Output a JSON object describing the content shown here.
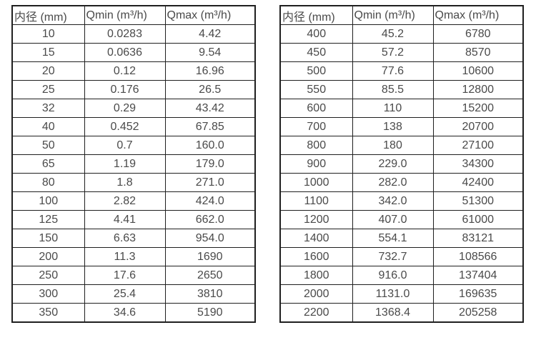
{
  "page": {
    "background_color": "#ffffff",
    "border_color": "#1f1f1f",
    "text_color": "#4a4a4a"
  },
  "tables": [
    {
      "id": "flow-range-table-left",
      "headers": [
        "内径 (mm)",
        "Qmin (m³/h)",
        "Qmax (m³/h)"
      ],
      "rows": [
        [
          "10",
          "0.0283",
          "4.42"
        ],
        [
          "15",
          "0.0636",
          "9.54"
        ],
        [
          "20",
          "0.12",
          "16.96"
        ],
        [
          "25",
          "0.176",
          "26.5"
        ],
        [
          "32",
          "0.29",
          "43.42"
        ],
        [
          "40",
          "0.452",
          "67.85"
        ],
        [
          "50",
          "0.7",
          "160.0"
        ],
        [
          "65",
          "1.19",
          "179.0"
        ],
        [
          "80",
          "1.8",
          "271.0"
        ],
        [
          "100",
          "2.82",
          "424.0"
        ],
        [
          "125",
          "4.41",
          "662.0"
        ],
        [
          "150",
          "6.63",
          "954.0"
        ],
        [
          "200",
          "11.3",
          "1690"
        ],
        [
          "250",
          "17.6",
          "2650"
        ],
        [
          "300",
          "25.4",
          "3810"
        ],
        [
          "350",
          "34.6",
          "5190"
        ]
      ]
    },
    {
      "id": "flow-range-table-right",
      "headers": [
        "内径 (mm)",
        "Qmin (m³/h)",
        "Qmax (m³/h)"
      ],
      "rows": [
        [
          "400",
          "45.2",
          "6780"
        ],
        [
          "450",
          "57.2",
          "8570"
        ],
        [
          "500",
          "77.6",
          "10600"
        ],
        [
          "550",
          "85.5",
          "12800"
        ],
        [
          "600",
          "110",
          "15200"
        ],
        [
          "700",
          "138",
          "20700"
        ],
        [
          "800",
          "180",
          "27100"
        ],
        [
          "900",
          "229.0",
          "34300"
        ],
        [
          "1000",
          "282.0",
          "42400"
        ],
        [
          "1100",
          "342.0",
          "51300"
        ],
        [
          "1200",
          "407.0",
          "61000"
        ],
        [
          "1400",
          "554.1",
          "83121"
        ],
        [
          "1600",
          "732.7",
          "108566"
        ],
        [
          "1800",
          "916.0",
          "137404"
        ],
        [
          "2000",
          "1131.0",
          "169635"
        ],
        [
          "2200",
          "1368.4",
          "205258"
        ]
      ]
    }
  ]
}
